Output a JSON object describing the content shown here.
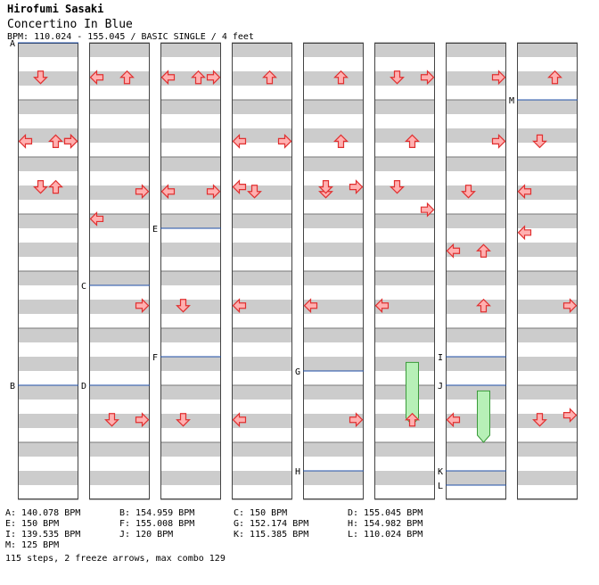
{
  "header": {
    "artist": "Hirofumi Sasaki",
    "title": "Concertino In Blue",
    "meta": "BPM: 110.024 - 155.045 / BASIC SINGLE / 4 feet"
  },
  "colors": {
    "stripe": "#cccccc",
    "column_border": "#444444",
    "bpm_line": "#1f4fa8",
    "arrow_fill": "#ffb0b0",
    "arrow_stroke": "#e03030",
    "freeze_fill": "#b7f0b7",
    "freeze_stroke": "#3a9a3a"
  },
  "chart_data": {
    "type": "step-chart",
    "columns": 8,
    "measures_per_column": 8,
    "arrows": [
      [
        0,
        0.06,
        1
      ],
      [
        0,
        0.2,
        2
      ],
      [
        0,
        0.2,
        3
      ],
      [
        0,
        0.3,
        1
      ],
      [
        0,
        0.3,
        2
      ],
      [
        0,
        0.2,
        0
      ],
      [
        0,
        0.2,
        3
      ],
      [
        1,
        0.06,
        2
      ],
      [
        1,
        0.31,
        3
      ],
      [
        1,
        0.56,
        3
      ],
      [
        1,
        0.81,
        1
      ],
      [
        1,
        0.81,
        3
      ],
      [
        1,
        0.06,
        0
      ],
      [
        1,
        0.37,
        0
      ],
      [
        2,
        0.06,
        2
      ],
      [
        2,
        0.31,
        0
      ],
      [
        2,
        0.56,
        1
      ],
      [
        2,
        0.81,
        1
      ],
      [
        2,
        0.06,
        0
      ],
      [
        2,
        0.06,
        3
      ],
      [
        2,
        0.31,
        3
      ],
      [
        3,
        0.06,
        2
      ],
      [
        3,
        0.31,
        1
      ],
      [
        3,
        0.56,
        0
      ],
      [
        3,
        0.81,
        0
      ],
      [
        3,
        0.2,
        0
      ],
      [
        3,
        0.2,
        3
      ],
      [
        3,
        0.3,
        0
      ],
      [
        4,
        0.06,
        2
      ],
      [
        4,
        0.31,
        1
      ],
      [
        4,
        0.56,
        0
      ],
      [
        4,
        0.81,
        3
      ],
      [
        4,
        0.2,
        2
      ],
      [
        4,
        0.3,
        1
      ],
      [
        4,
        0.3,
        3
      ],
      [
        5,
        0.06,
        1
      ],
      [
        5,
        0.2,
        2
      ],
      [
        5,
        0.56,
        0
      ],
      [
        5,
        0.81,
        2
      ],
      [
        5,
        0.06,
        3
      ],
      [
        5,
        0.35,
        3
      ],
      [
        5,
        0.3,
        1
      ],
      [
        6,
        0.06,
        3
      ],
      [
        6,
        0.31,
        1
      ],
      [
        6,
        0.56,
        2
      ],
      [
        6,
        0.81,
        0
      ],
      [
        6,
        0.2,
        3
      ],
      [
        6,
        0.44,
        0
      ],
      [
        6,
        0.44,
        2
      ],
      [
        7,
        0.06,
        2
      ],
      [
        7,
        0.31,
        0
      ],
      [
        7,
        0.56,
        3
      ],
      [
        7,
        0.81,
        1
      ],
      [
        7,
        0.2,
        1
      ],
      [
        7,
        0.4,
        0
      ],
      [
        7,
        0.8,
        3
      ]
    ],
    "freezes": [
      {
        "column": 5,
        "lane": 2,
        "start_measure": 5.6,
        "end_measure": 6.7
      },
      {
        "column": 6,
        "lane": 2,
        "start_measure": 6.1,
        "end_measure": 7.0
      }
    ],
    "bpm_markers": [
      {
        "label": "A",
        "column": 0,
        "measure": 0
      },
      {
        "label": "B",
        "column": 0,
        "measure": 6
      },
      {
        "label": "C",
        "column": 1,
        "measure": 4.25
      },
      {
        "label": "D",
        "column": 1,
        "measure": 6
      },
      {
        "label": "E",
        "column": 2,
        "measure": 3.25
      },
      {
        "label": "F",
        "column": 2,
        "measure": 5.5
      },
      {
        "label": "G",
        "column": 4,
        "measure": 5.75
      },
      {
        "label": "H",
        "column": 4,
        "measure": 7.5
      },
      {
        "label": "I",
        "column": 6,
        "measure": 5.5
      },
      {
        "label": "J",
        "column": 6,
        "measure": 6
      },
      {
        "label": "K",
        "column": 6,
        "measure": 7.5
      },
      {
        "label": "L",
        "column": 6,
        "measure": 7.75
      },
      {
        "label": "M",
        "column": 7,
        "measure": 1
      }
    ]
  },
  "legend": [
    "A: 140.078 BPM",
    "B: 154.959 BPM",
    "C: 150 BPM",
    "D: 155.045 BPM",
    "E: 150 BPM",
    "F: 155.008 BPM",
    "G: 152.174 BPM",
    "H: 154.982 BPM",
    "I: 139.535 BPM",
    "J: 120 BPM",
    "K: 115.385 BPM",
    "L: 110.024 BPM",
    "M: 125 BPM"
  ],
  "summary": "115 steps, 2 freeze arrows, max combo 129"
}
